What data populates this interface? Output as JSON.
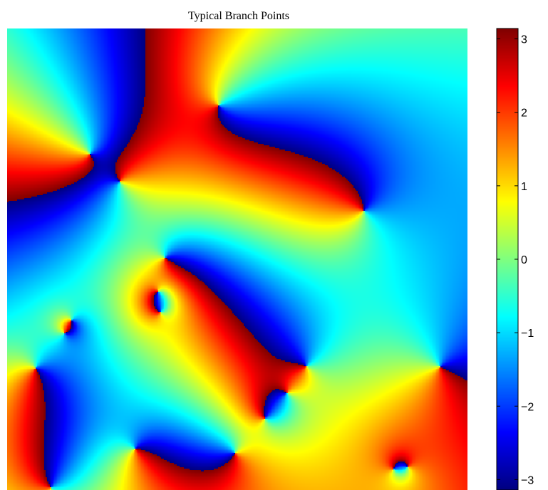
{
  "chart_data": {
    "type": "heatmap",
    "title": "Typical Branch Points",
    "xlabel": "",
    "ylabel": "",
    "axis_ticks_visible": false,
    "colormap": "jet",
    "colorbar": {
      "location": "right",
      "clim": [
        -3.1416,
        3.1416
      ],
      "ticks": [
        3,
        2,
        1,
        0,
        -1,
        -2,
        -3
      ],
      "tick_labels": [
        "3",
        "2",
        "1",
        "0",
        "−1",
        "−2",
        "−3"
      ]
    },
    "field_description": "phase angle field with point singularities (branch points)",
    "domain": {
      "x": [
        0,
        1
      ],
      "y": [
        0,
        1
      ]
    },
    "background_phase": -1.0,
    "branch_points": [
      {
        "x": 0.18,
        "y": 0.728,
        "winding": 1
      },
      {
        "x": 0.245,
        "y": 0.668,
        "winding": 1
      },
      {
        "x": 0.46,
        "y": 0.833,
        "winding": 1
      },
      {
        "x": 0.775,
        "y": 0.605,
        "winding": -1
      },
      {
        "x": 0.343,
        "y": 0.503,
        "winding": 1
      },
      {
        "x": 0.328,
        "y": 0.43,
        "winding": 1
      },
      {
        "x": 0.333,
        "y": 0.385,
        "winding": -1
      },
      {
        "x": 0.14,
        "y": 0.368,
        "winding": 1
      },
      {
        "x": 0.125,
        "y": 0.34,
        "winding": -1
      },
      {
        "x": 0.062,
        "y": 0.264,
        "winding": 1
      },
      {
        "x": 0.65,
        "y": 0.268,
        "winding": -1
      },
      {
        "x": 0.608,
        "y": 0.21,
        "winding": 1
      },
      {
        "x": 0.56,
        "y": 0.155,
        "winding": -1
      },
      {
        "x": 0.94,
        "y": 0.267,
        "winding": 1
      },
      {
        "x": 0.278,
        "y": 0.089,
        "winding": 1
      },
      {
        "x": 0.495,
        "y": 0.08,
        "winding": -1
      },
      {
        "x": 0.84,
        "y": 0.045,
        "winding": -1
      },
      {
        "x": 0.87,
        "y": 0.05,
        "winding": 1
      },
      {
        "x": 0.095,
        "y": 0.005,
        "winding": -1
      }
    ]
  }
}
